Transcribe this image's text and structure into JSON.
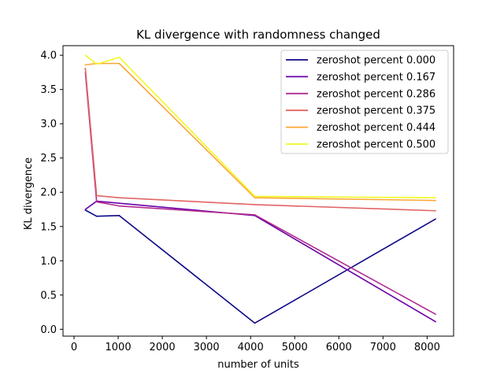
{
  "chart_data": {
    "type": "line",
    "title": "KL divergence with randomness changed",
    "xlabel": "number of units",
    "ylabel": "KL divergence",
    "xlim": [
      -250,
      8600
    ],
    "ylim": [
      -0.1,
      4.14
    ],
    "xticks": [
      0,
      1000,
      2000,
      3000,
      4000,
      5000,
      6000,
      7000,
      8000
    ],
    "yticks": [
      0.0,
      0.5,
      1.0,
      1.5,
      2.0,
      2.5,
      3.0,
      3.5,
      4.0
    ],
    "xtick_labels": [
      "0",
      "1000",
      "2000",
      "3000",
      "4000",
      "5000",
      "6000",
      "7000",
      "8000"
    ],
    "ytick_labels": [
      "0.0",
      "0.5",
      "1.0",
      "1.5",
      "2.0",
      "2.5",
      "3.0",
      "3.5",
      "4.0"
    ],
    "grid": false,
    "legend_position": "top-right",
    "x": [
      256,
      512,
      1024,
      4096,
      8192
    ],
    "series": [
      {
        "name": "zeroshot percent 0.000",
        "color": "#0d0887",
        "values": [
          1.74,
          1.65,
          1.66,
          0.09,
          1.61
        ]
      },
      {
        "name": "zeroshot percent 0.167",
        "color": "#6a00a8",
        "values": [
          1.75,
          1.87,
          1.84,
          1.66,
          0.11
        ]
      },
      {
        "name": "zeroshot percent 0.286",
        "color": "#b12a90",
        "values": [
          3.75,
          1.86,
          1.8,
          1.67,
          0.22
        ]
      },
      {
        "name": "zeroshot percent 0.375",
        "color": "#e16462",
        "values": [
          3.81,
          1.95,
          1.92,
          1.82,
          1.73
        ]
      },
      {
        "name": "zeroshot percent 0.444",
        "color": "#fca636",
        "values": [
          3.86,
          3.88,
          3.88,
          1.92,
          1.88
        ]
      },
      {
        "name": "zeroshot percent 0.500",
        "color": "#f0f921",
        "values": [
          4.0,
          3.87,
          3.97,
          1.94,
          1.92
        ]
      }
    ]
  }
}
